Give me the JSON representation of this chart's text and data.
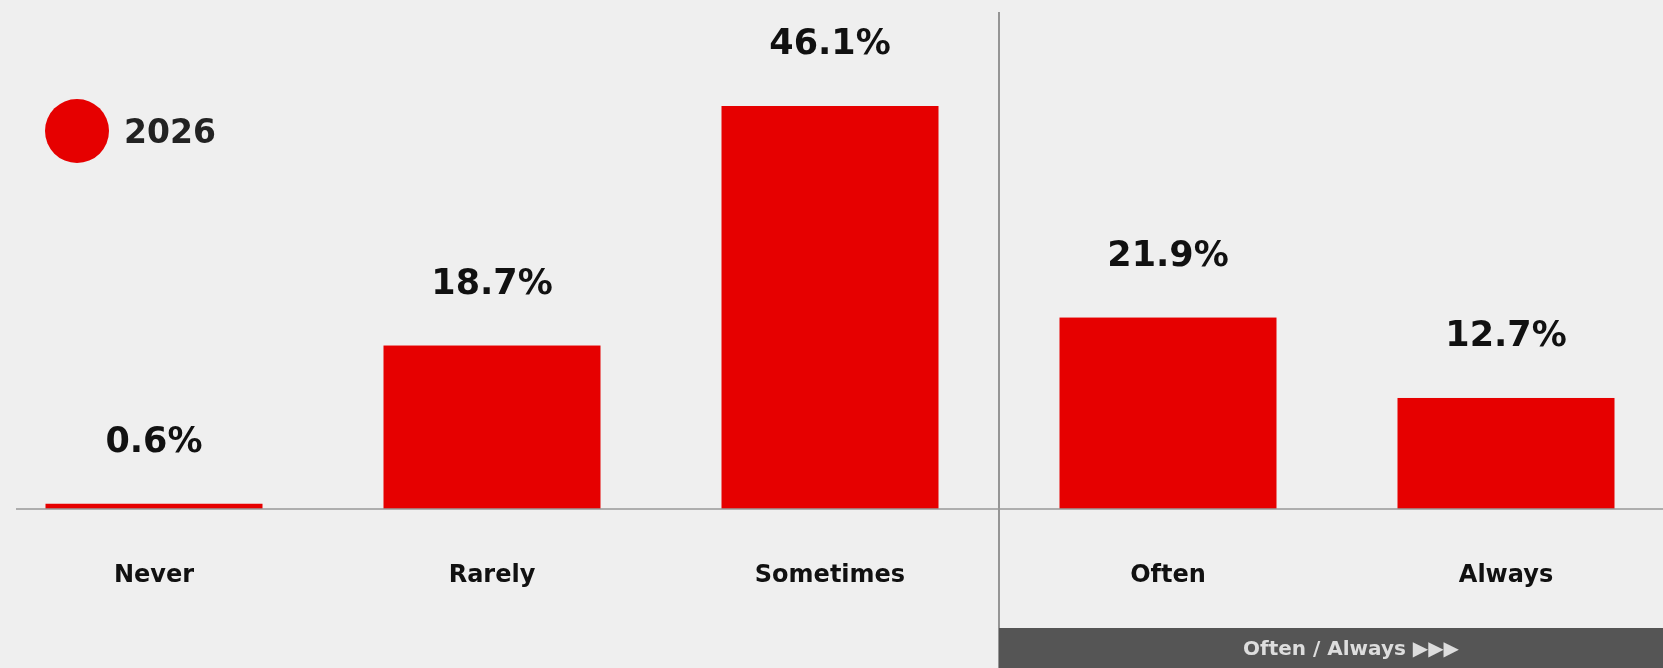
{
  "chart_data": {
    "type": "bar",
    "categories": [
      "Never",
      "Rarely",
      "Sometimes",
      "Often",
      "Always"
    ],
    "series": [
      {
        "name": "2026",
        "color": "#e60000",
        "values": [
          0.6,
          18.7,
          46.1,
          21.9,
          12.7
        ],
        "value_labels": [
          "0.6%",
          "18.7%",
          "46.1%",
          "21.9%",
          "12.7%"
        ]
      }
    ],
    "legend": "top left",
    "annotations": [
      "Often / Always ▶▶▶"
    ]
  }
}
